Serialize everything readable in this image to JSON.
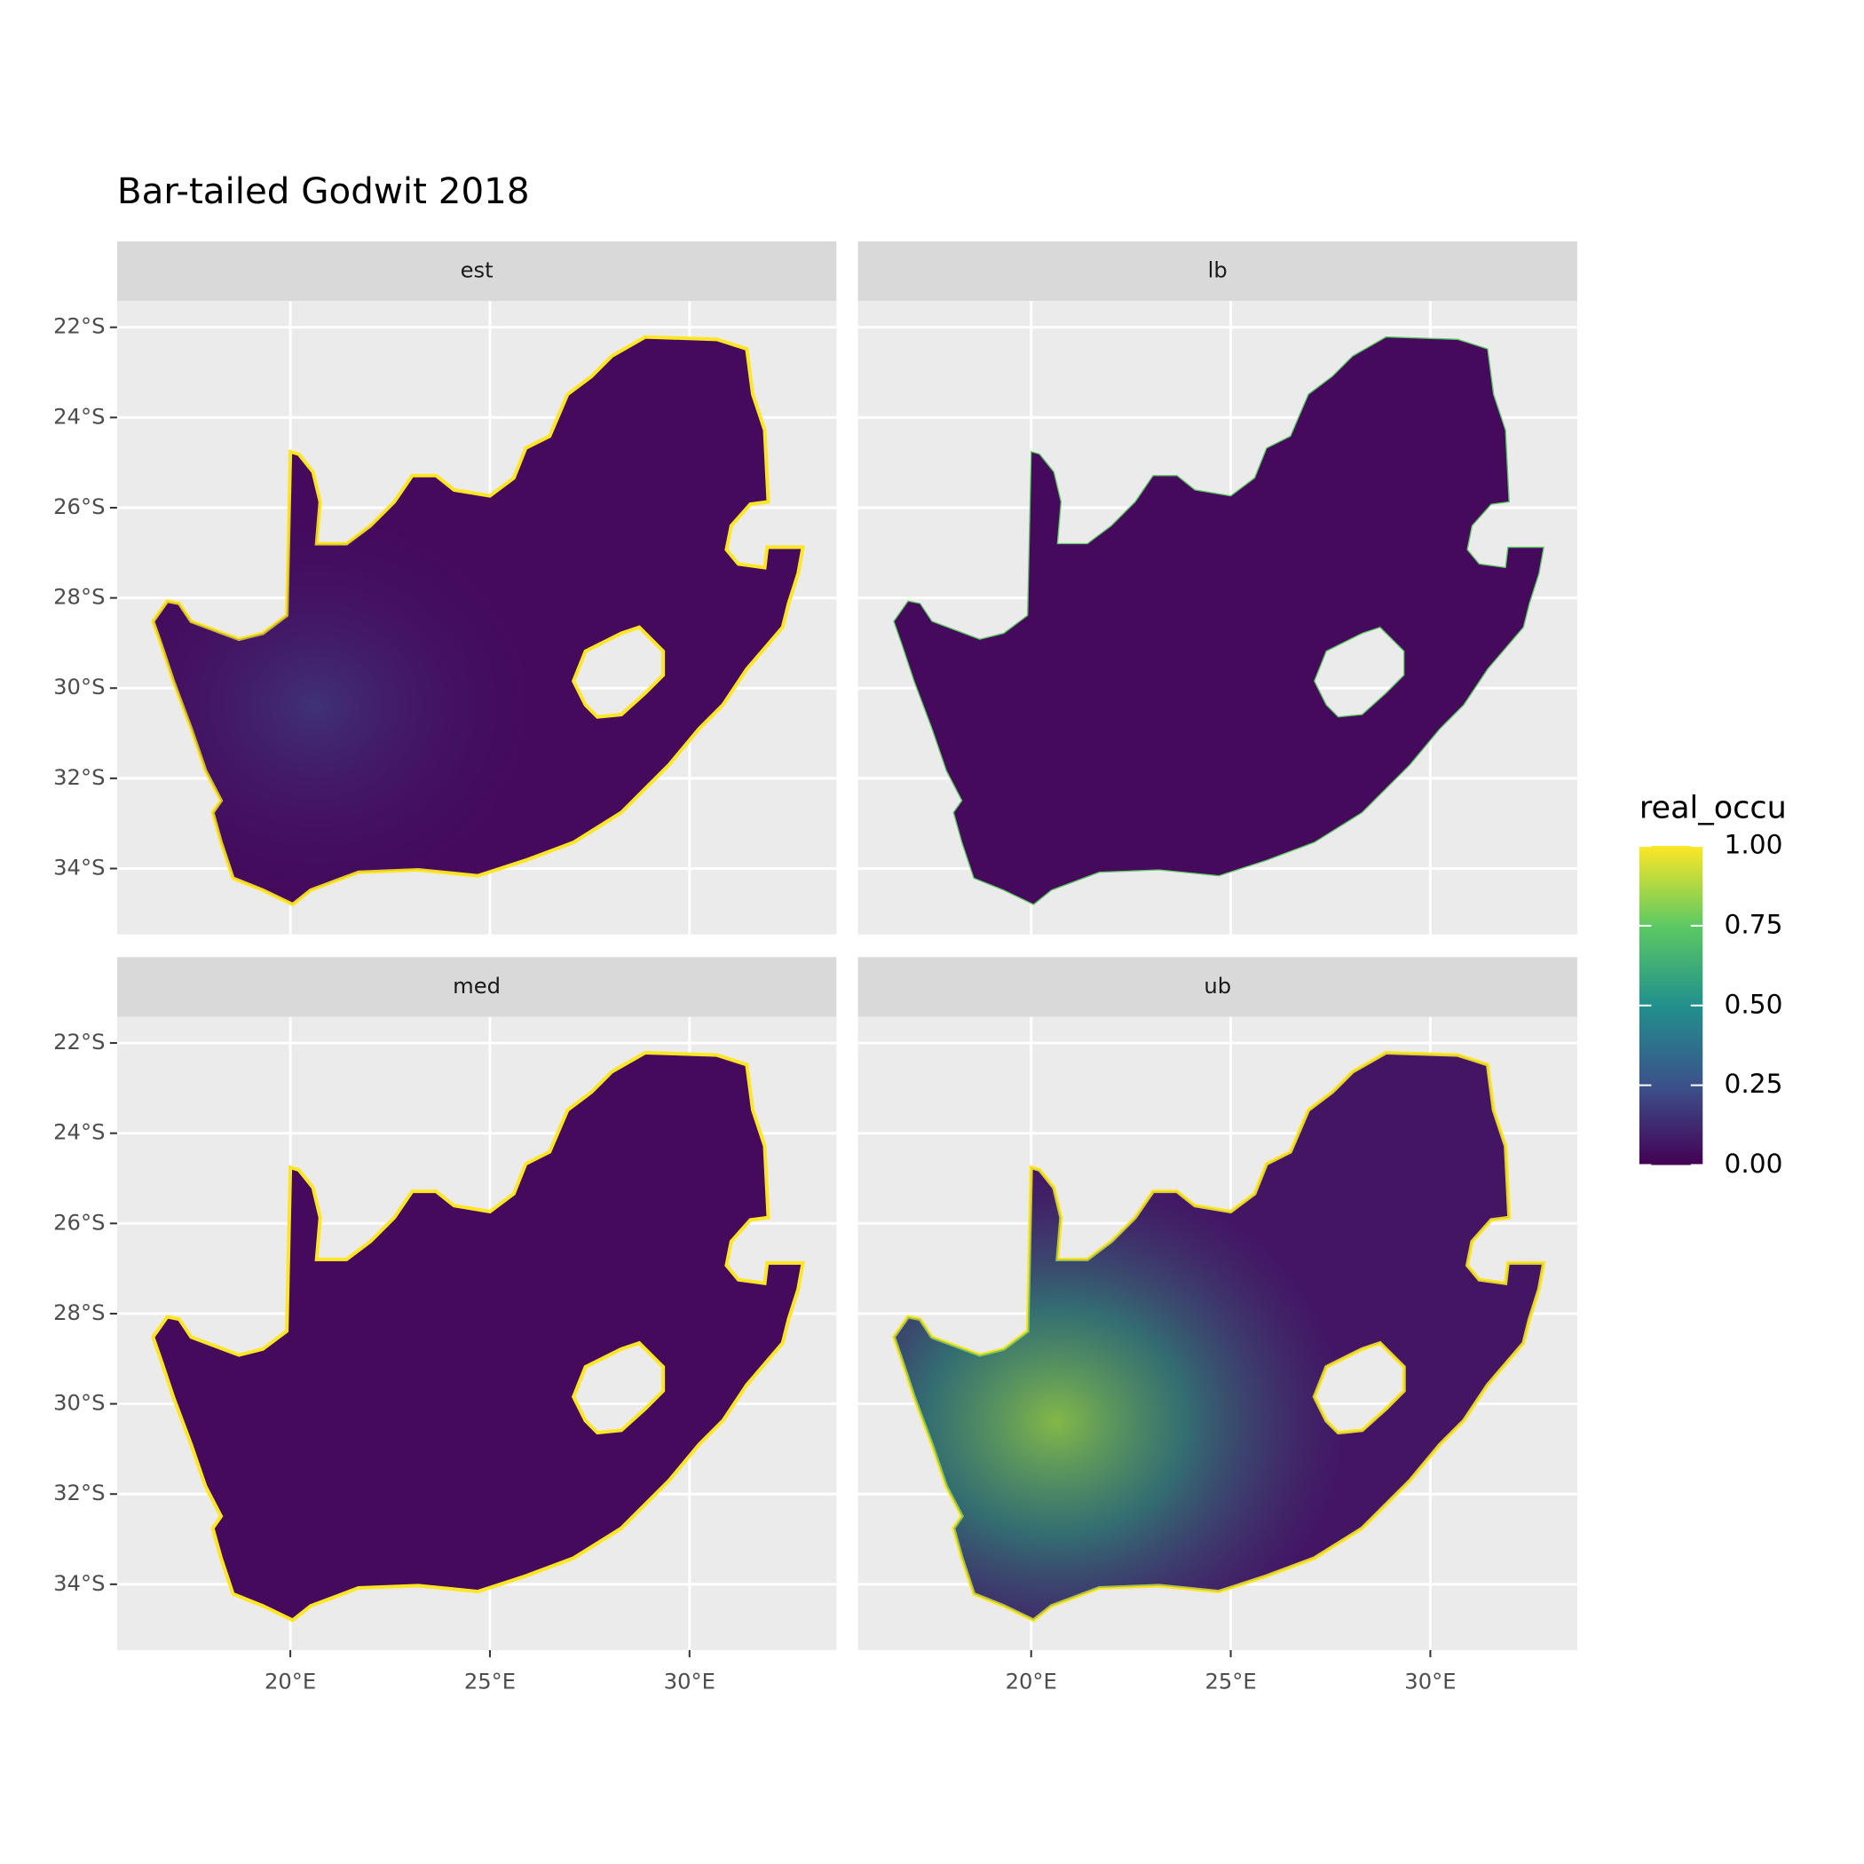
{
  "title": "Bar-tailed Godwit 2018",
  "panels": [
    {
      "label": "est"
    },
    {
      "label": "lb"
    },
    {
      "label": "med"
    },
    {
      "label": "ub"
    }
  ],
  "xlim": [
    15.66,
    33.68
  ],
  "ylim": [
    -35.46,
    -21.42
  ],
  "xticks": [
    {
      "value": 20,
      "label": "20°E"
    },
    {
      "value": 25,
      "label": "25°E"
    },
    {
      "value": 30,
      "label": "30°E"
    }
  ],
  "yticks": [
    {
      "value": -22,
      "label": "22°S"
    },
    {
      "value": -24,
      "label": "24°S"
    },
    {
      "value": -26,
      "label": "26°S"
    },
    {
      "value": -28,
      "label": "28°S"
    },
    {
      "value": -30,
      "label": "30°S"
    },
    {
      "value": -32,
      "label": "32°S"
    },
    {
      "value": -34,
      "label": "34°S"
    }
  ],
  "legend": {
    "title": "real_occu",
    "ticks": [
      {
        "value": 0,
        "label": "0.00"
      },
      {
        "value": 0.25,
        "label": "0.25"
      },
      {
        "value": 0.5,
        "label": "0.50"
      },
      {
        "value": 0.75,
        "label": "0.75"
      },
      {
        "value": 1,
        "label": "1.00"
      }
    ],
    "colors": [
      "#440154",
      "#3b528b",
      "#21908c",
      "#5dc963",
      "#fde725"
    ]
  }
}
